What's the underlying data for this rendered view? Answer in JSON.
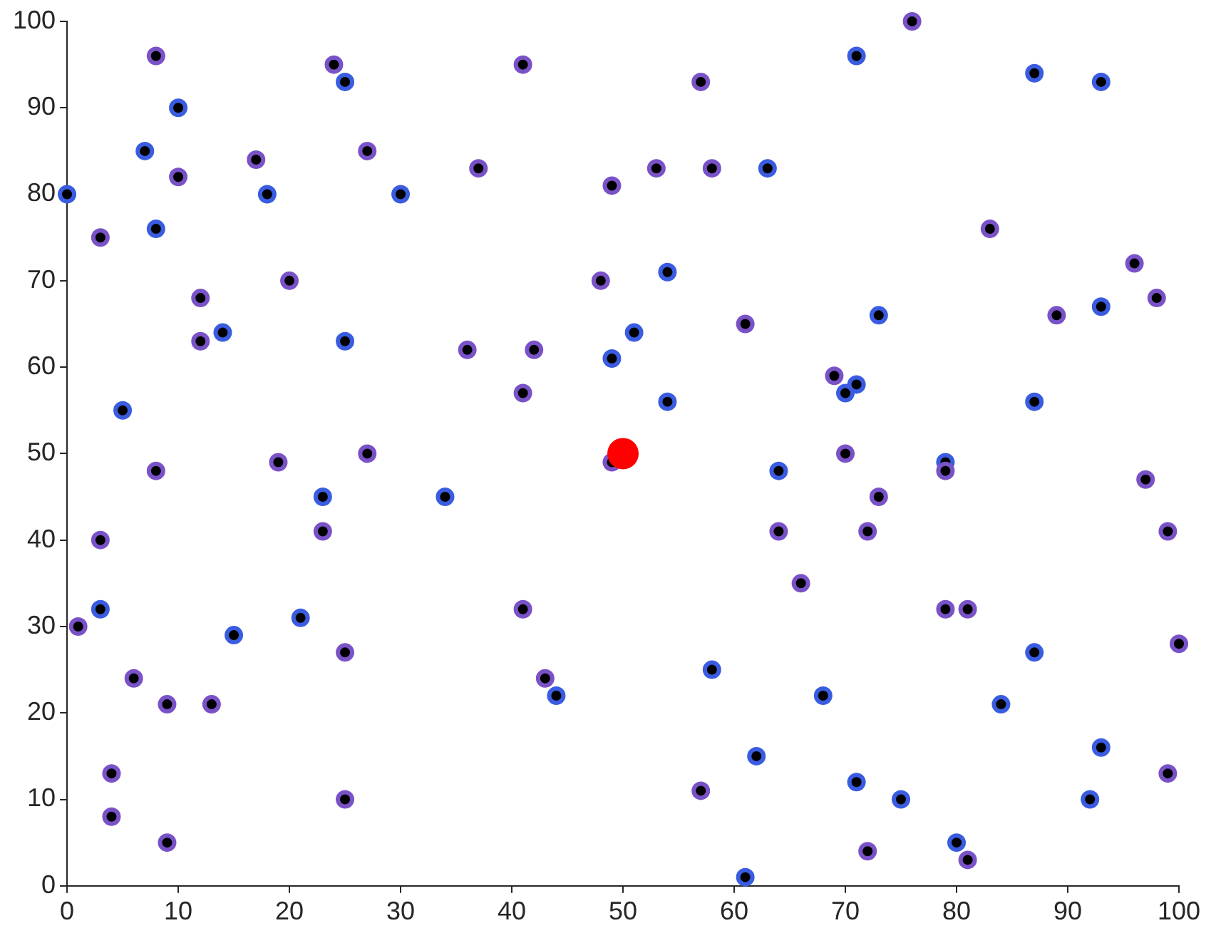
{
  "chart_data": {
    "type": "scatter",
    "marker": "circle",
    "grid": false,
    "legend": false,
    "xlim": [
      0,
      100
    ],
    "ylim": [
      0,
      100
    ],
    "xticks": [
      0,
      10,
      20,
      30,
      40,
      50,
      60,
      70,
      80,
      90,
      100
    ],
    "yticks": [
      0,
      10,
      20,
      30,
      40,
      50,
      60,
      70,
      80,
      90,
      100
    ],
    "series": [
      {
        "x": [
          0,
          3,
          8,
          10,
          7,
          10,
          8,
          17,
          18,
          24,
          25,
          27,
          30,
          37,
          41,
          49,
          53,
          57,
          58,
          63,
          71,
          76,
          87,
          93,
          83,
          96,
          98,
          93,
          89,
          73,
          61,
          54,
          51,
          48,
          49,
          42,
          36,
          41,
          54,
          20,
          12,
          14,
          12,
          25,
          5,
          8,
          19,
          27,
          23,
          34,
          23,
          3,
          3,
          1,
          15,
          21,
          25,
          6,
          9,
          13,
          4,
          4,
          9,
          25,
          41,
          43,
          44,
          49,
          69,
          70,
          71,
          87,
          64,
          70,
          79,
          79,
          97,
          73,
          64,
          72,
          99,
          66,
          79,
          81,
          100,
          87,
          58,
          68,
          84,
          93,
          62,
          57,
          71,
          75,
          92,
          99,
          80,
          72,
          81,
          61
        ],
        "values": [
          80,
          75,
          96,
          90,
          85,
          82,
          76,
          84,
          80,
          95,
          93,
          85,
          80,
          83,
          95,
          81,
          83,
          93,
          83,
          83,
          96,
          100,
          94,
          93,
          76,
          72,
          68,
          67,
          66,
          66,
          65,
          71,
          64,
          70,
          61,
          62,
          62,
          57,
          56,
          70,
          68,
          64,
          63,
          63,
          55,
          48,
          49,
          50,
          45,
          45,
          41,
          40,
          32,
          30,
          29,
          31,
          27,
          24,
          21,
          21,
          13,
          8,
          5,
          10,
          32,
          24,
          22,
          49,
          59,
          57,
          58,
          56,
          48,
          50,
          49,
          48,
          47,
          45,
          41,
          41,
          41,
          35,
          32,
          32,
          28,
          27,
          25,
          22,
          21,
          16,
          15,
          11,
          12,
          10,
          10,
          13,
          5,
          4,
          3,
          1
        ],
        "colors": [
          "#3a5ce0",
          "#7a52c8",
          "#7a52c8",
          "#3a5ce0",
          "#3a5ce0",
          "#7a52c8",
          "#3a5ce0",
          "#7a52c8",
          "#3a5ce0",
          "#7a52c8",
          "#3a5ce0",
          "#7a52c8",
          "#3a5ce0",
          "#7a52c8",
          "#7a52c8",
          "#7a52c8",
          "#7a52c8",
          "#7a52c8",
          "#7a52c8",
          "#3a5ce0",
          "#3a5ce0",
          "#7a52c8",
          "#3a5ce0",
          "#3a5ce0",
          "#7a52c8",
          "#7a52c8",
          "#7a52c8",
          "#3a5ce0",
          "#7a52c8",
          "#3a5ce0",
          "#7a52c8",
          "#3a5ce0",
          "#3a5ce0",
          "#7a52c8",
          "#3a5ce0",
          "#7a52c8",
          "#7a52c8",
          "#7a52c8",
          "#3a5ce0",
          "#7a52c8",
          "#7a52c8",
          "#3a5ce0",
          "#7a52c8",
          "#3a5ce0",
          "#3a5ce0",
          "#7a52c8",
          "#7a52c8",
          "#7a52c8",
          "#3a5ce0",
          "#3a5ce0",
          "#7a52c8",
          "#7a52c8",
          "#3a5ce0",
          "#7a52c8",
          "#3a5ce0",
          "#3a5ce0",
          "#7a52c8",
          "#7a52c8",
          "#7a52c8",
          "#7a52c8",
          "#7a52c8",
          "#7a52c8",
          "#7a52c8",
          "#7a52c8",
          "#7a52c8",
          "#7a52c8",
          "#3a5ce0",
          "#7a52c8",
          "#7a52c8",
          "#3a5ce0",
          "#3a5ce0",
          "#3a5ce0",
          "#3a5ce0",
          "#7a52c8",
          "#3a5ce0",
          "#7a52c8",
          "#7a52c8",
          "#7a52c8",
          "#7a52c8",
          "#7a52c8",
          "#7a52c8",
          "#7a52c8",
          "#7a52c8",
          "#7a52c8",
          "#7a52c8",
          "#3a5ce0",
          "#3a5ce0",
          "#3a5ce0",
          "#3a5ce0",
          "#3a5ce0",
          "#3a5ce0",
          "#7a52c8",
          "#3a5ce0",
          "#3a5ce0",
          "#3a5ce0",
          "#7a52c8",
          "#3a5ce0",
          "#7a52c8",
          "#7a52c8",
          "#3a5ce0"
        ]
      },
      {
        "x": [
          50
        ],
        "values": [
          50
        ],
        "color": "#ff0000"
      }
    ]
  }
}
